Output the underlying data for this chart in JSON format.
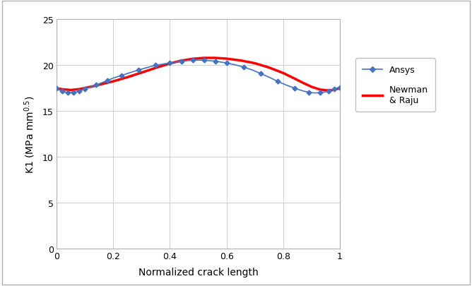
{
  "xlabel": "Normalized crack length",
  "ylabel_text": "K1 (MPa mm$^{0.5}$)",
  "xlim": [
    0,
    1.0
  ],
  "ylim": [
    0,
    25
  ],
  "yticks": [
    0,
    5,
    10,
    15,
    20,
    25
  ],
  "xtick_vals": [
    0,
    0.2,
    0.4,
    0.6,
    0.8,
    1.0
  ],
  "xtick_labels": [
    "0",
    "0.2",
    "0.4",
    "0.6",
    "0.8",
    "1"
  ],
  "ansys_color": "#4472C4",
  "newman_color": "#FF0000",
  "background_color": "#ffffff",
  "border_color": "#c0c0c0",
  "legend_ansys": "Ansys",
  "legend_newman": "Newman\n& Raju",
  "ansys_x": [
    0.0,
    0.01,
    0.02,
    0.03,
    0.04,
    0.05,
    0.06,
    0.07,
    0.08,
    0.09,
    0.1,
    0.12,
    0.14,
    0.16,
    0.18,
    0.2,
    0.23,
    0.26,
    0.29,
    0.32,
    0.35,
    0.38,
    0.4,
    0.42,
    0.44,
    0.46,
    0.48,
    0.5,
    0.52,
    0.54,
    0.56,
    0.58,
    0.6,
    0.63,
    0.66,
    0.69,
    0.72,
    0.75,
    0.78,
    0.81,
    0.84,
    0.87,
    0.89,
    0.91,
    0.93,
    0.95,
    0.96,
    0.97,
    0.98,
    0.99,
    1.0
  ],
  "ansys_y": [
    17.5,
    17.3,
    17.15,
    17.05,
    17.0,
    17.0,
    17.05,
    17.1,
    17.2,
    17.3,
    17.45,
    17.65,
    17.85,
    18.1,
    18.35,
    18.6,
    18.9,
    19.2,
    19.5,
    19.75,
    20.0,
    20.15,
    20.25,
    20.35,
    20.45,
    20.5,
    20.55,
    20.55,
    20.55,
    20.5,
    20.45,
    20.35,
    20.25,
    20.05,
    19.8,
    19.5,
    19.1,
    18.7,
    18.25,
    17.85,
    17.5,
    17.2,
    17.05,
    16.98,
    17.0,
    17.1,
    17.2,
    17.3,
    17.4,
    17.5,
    17.6
  ],
  "newman_x": [
    0.0,
    0.02,
    0.05,
    0.08,
    0.1,
    0.13,
    0.16,
    0.2,
    0.25,
    0.3,
    0.35,
    0.4,
    0.44,
    0.48,
    0.52,
    0.56,
    0.6,
    0.65,
    0.7,
    0.75,
    0.8,
    0.84,
    0.87,
    0.9,
    0.93,
    0.96,
    0.98,
    1.0
  ],
  "newman_y": [
    17.5,
    17.38,
    17.3,
    17.4,
    17.52,
    17.72,
    17.95,
    18.25,
    18.7,
    19.2,
    19.72,
    20.2,
    20.5,
    20.7,
    20.8,
    20.8,
    20.72,
    20.52,
    20.22,
    19.75,
    19.15,
    18.55,
    18.08,
    17.65,
    17.35,
    17.25,
    17.32,
    17.5
  ]
}
